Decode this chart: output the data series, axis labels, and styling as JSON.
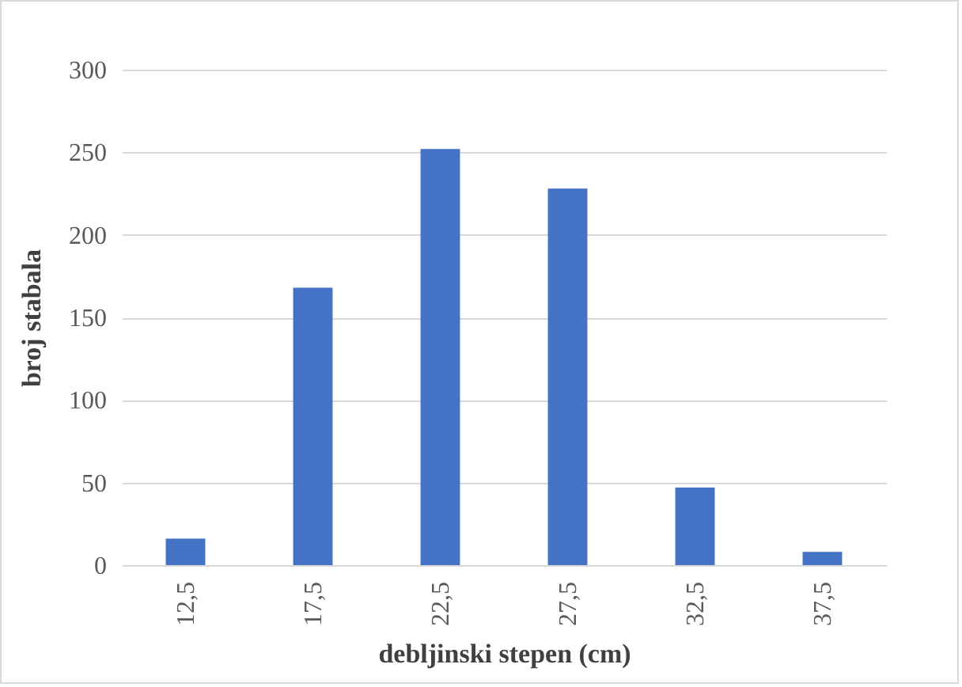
{
  "chart_data": {
    "type": "bar",
    "xlabel": "debljinski stepen (cm)",
    "ylabel": "broj stabala",
    "categories": [
      "12,5",
      "17,5",
      "22,5",
      "27,5",
      "32,5",
      "37,5"
    ],
    "values": [
      16,
      168,
      252,
      228,
      47,
      8
    ],
    "color": "#4472c4",
    "ylim": [
      0,
      300
    ],
    "yticks": [
      0,
      50,
      100,
      150,
      200,
      250,
      300
    ],
    "grid": "y"
  }
}
